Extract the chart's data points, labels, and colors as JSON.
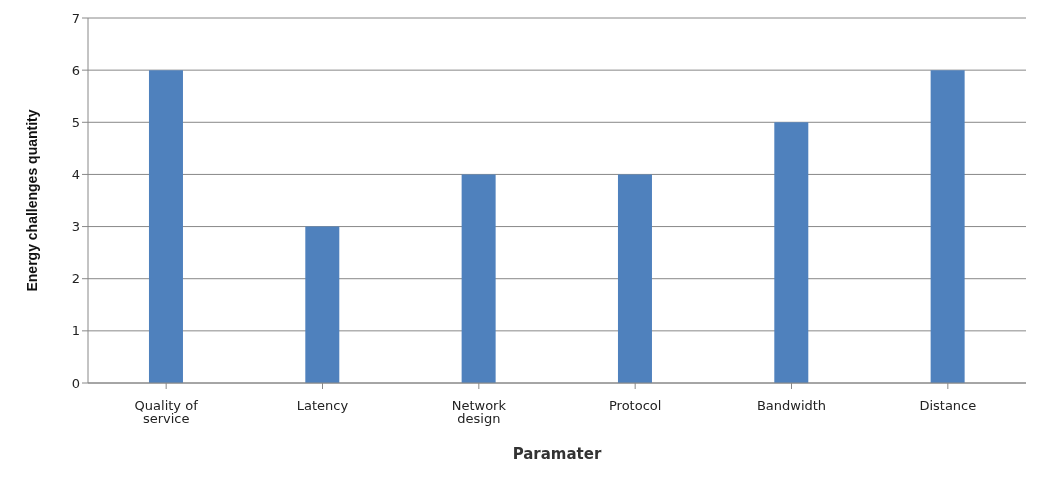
{
  "chart_data": {
    "type": "bar",
    "xlabel": "Paramater",
    "ylabel": "Energy challenges quantity",
    "categories": [
      "Quality of service",
      "Latency",
      "Network design",
      "Protocol",
      "Bandwidth",
      "Distance"
    ],
    "values": [
      6,
      3,
      4,
      4,
      5,
      6
    ],
    "color": "#4f81bd",
    "ylim": [
      0,
      7
    ],
    "yticks": [
      0,
      1,
      2,
      3,
      4,
      5,
      6,
      7
    ],
    "grid": "y"
  }
}
